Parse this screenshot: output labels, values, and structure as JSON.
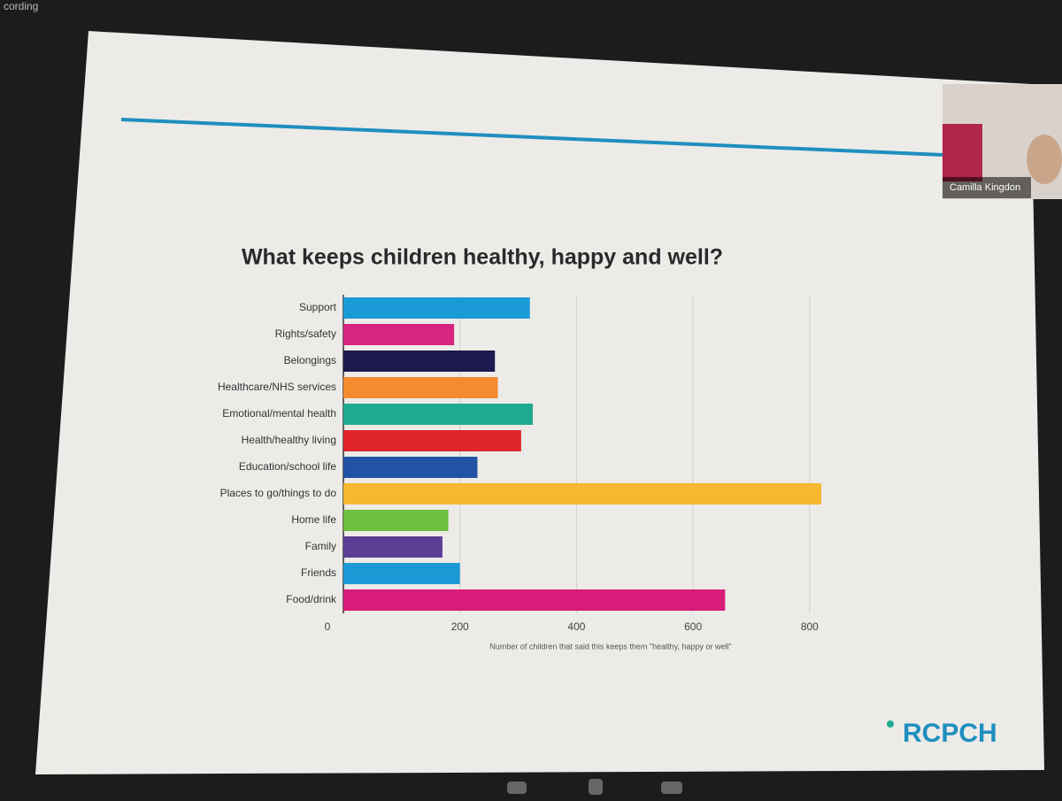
{
  "recording_label": "cording",
  "participant_name": "Camilla Kingdon",
  "logo": "RCPCH",
  "chart_data": {
    "type": "bar",
    "orientation": "horizontal",
    "title": "What keeps children healthy, happy and well?",
    "x_label": "Number of children that said this keeps them \"healthy, happy or well\"",
    "categories": [
      "Support",
      "Rights/safety",
      "Belongings",
      "Healthcare/NHS services",
      "Emotional/mental health",
      "Health/healthy living",
      "Education/school life",
      "Places to go/things to do",
      "Home life",
      "Family",
      "Friends",
      "Food/drink"
    ],
    "values": [
      320,
      190,
      260,
      265,
      325,
      305,
      230,
      820,
      180,
      170,
      200,
      655
    ],
    "colors": [
      "#1a9ad6",
      "#d6247f",
      "#1c1a4e",
      "#f58a2e",
      "#1fa98f",
      "#e0262b",
      "#2152a3",
      "#f6b731",
      "#6cbf3f",
      "#5b3f95",
      "#1d9ad6",
      "#d91c7a"
    ],
    "xlim": [
      0,
      820
    ],
    "xticks": [
      0,
      200,
      400,
      600,
      800
    ],
    "grid": true
  }
}
